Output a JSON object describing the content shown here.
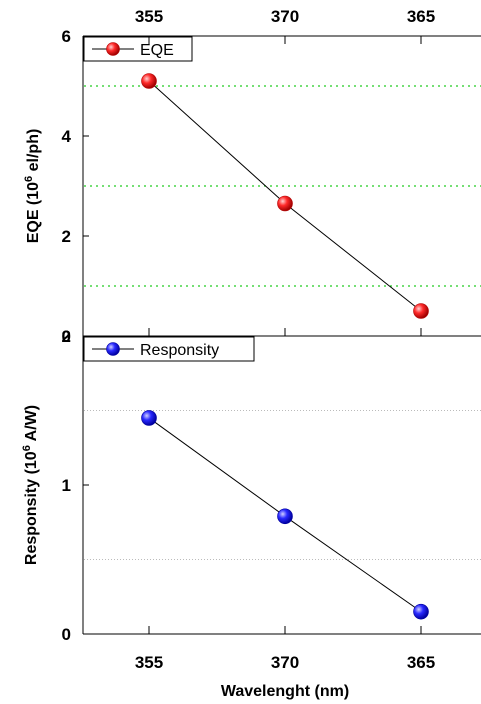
{
  "chart_data": [
    {
      "type": "line",
      "categories": [
        "355",
        "370",
        "365"
      ],
      "series": [
        {
          "name": "EQE",
          "values": [
            5.1,
            2.65,
            0.5
          ]
        }
      ],
      "ylabel_main": "EQE (10",
      "ylabel_sup": "6",
      "ylabel_rest": " el/ph)",
      "yticks": [
        "0",
        "2",
        "4",
        "6"
      ],
      "ylim": [
        0,
        6
      ],
      "grid_y": [
        1,
        3,
        5
      ],
      "grid_style": "green-dotted",
      "legend": "top-left",
      "colors": {
        "marker": "#ff2a2a",
        "marker_dark": "#b30000",
        "grid": "#22cc22"
      }
    },
    {
      "type": "line",
      "categories": [
        "355",
        "370",
        "365"
      ],
      "series": [
        {
          "name": "Responsity",
          "values": [
            1.45,
            0.79,
            0.15
          ]
        }
      ],
      "ylabel_main": "Responsity (10",
      "ylabel_sup": "6",
      "ylabel_rest": " A/W)",
      "xlabel": "Wavelenght (nm)",
      "yticks": [
        "0",
        "1"
      ],
      "ylim": [
        0,
        2
      ],
      "grid_y": [
        0.5,
        1.5
      ],
      "grid_style": "gray-dotted",
      "legend": "top-left",
      "colors": {
        "marker": "#2a2aff",
        "marker_dark": "#0000a0",
        "grid": "#bbbbbb"
      }
    }
  ],
  "top_axis_labels": [
    "355",
    "370",
    "365"
  ],
  "top_panel_top_tick": "2"
}
